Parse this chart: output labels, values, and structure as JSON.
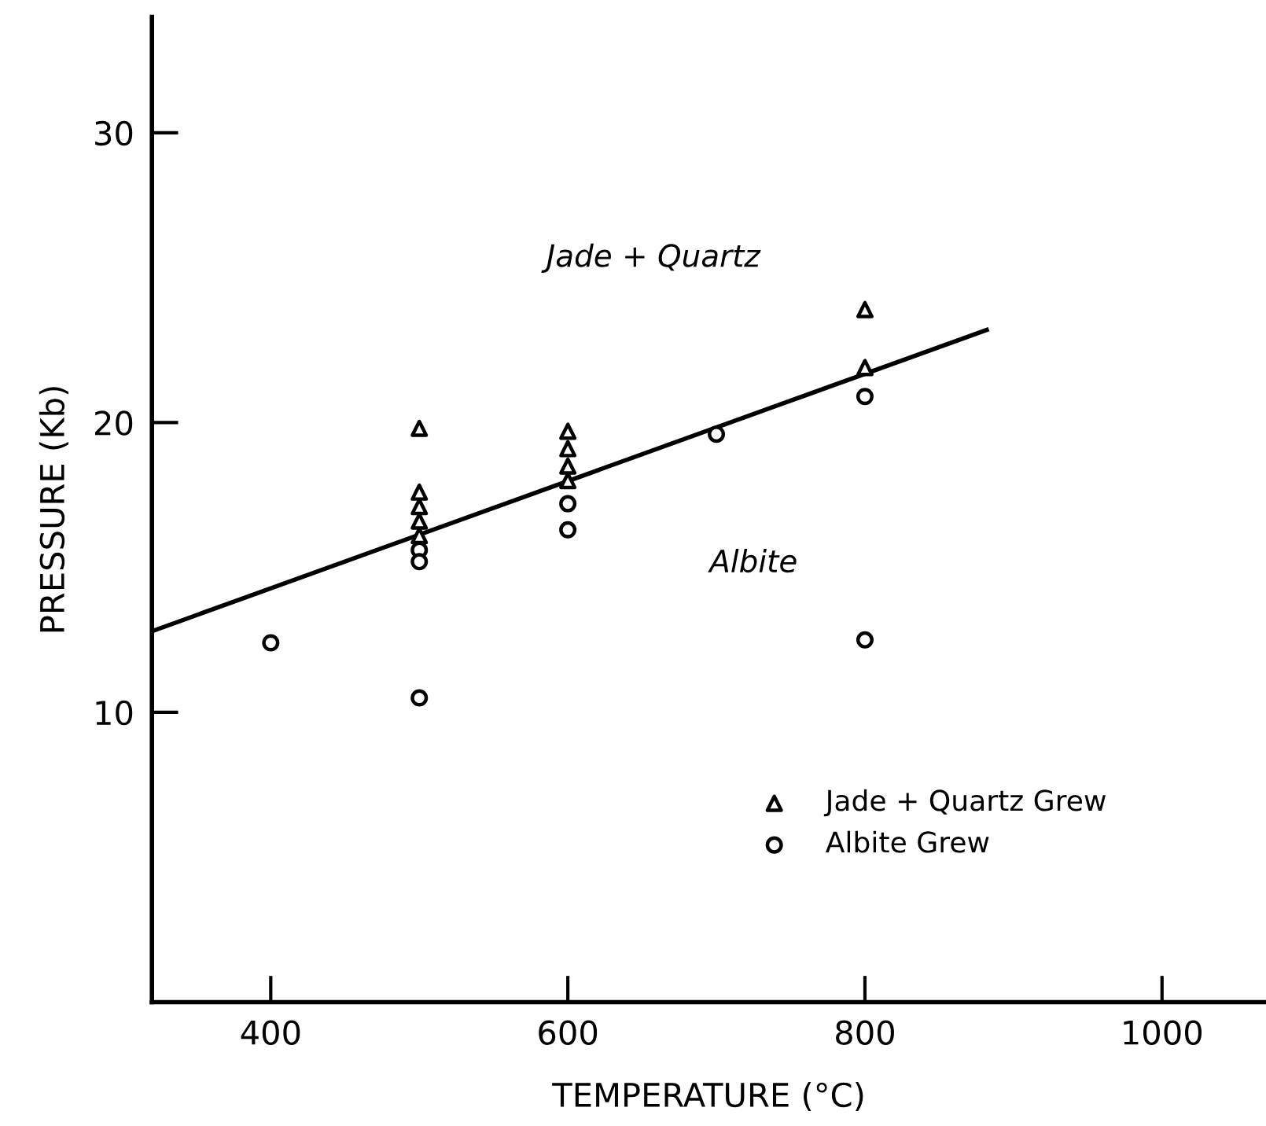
{
  "chart_data": {
    "type": "scatter",
    "xlabel": "TEMPERATURE (°C)",
    "ylabel": "PRESSURE (Kb)",
    "xlim": [
      320,
      1070
    ],
    "ylim": [
      0,
      34
    ],
    "xticks": [
      400,
      600,
      800,
      1000
    ],
    "yticks": [
      10,
      20,
      30
    ],
    "grid": false,
    "legend": "bottom right",
    "series": [
      {
        "name": "Jade + Quartz Grew",
        "color": "#000000",
        "marker": "triangle",
        "x": [
          500,
          500,
          500,
          500,
          500,
          600,
          600,
          600,
          600,
          800,
          800
        ],
        "values": [
          19.8,
          17.6,
          17.1,
          16.6,
          16.1,
          19.7,
          19.1,
          18.5,
          18.0,
          23.9,
          21.9
        ]
      },
      {
        "name": "Albite Grew",
        "color": "#000000",
        "marker": "circle",
        "x": [
          400,
          500,
          500,
          500,
          600,
          600,
          700,
          800,
          800
        ],
        "values": [
          12.4,
          15.6,
          15.2,
          10.5,
          17.2,
          16.3,
          19.6,
          20.9,
          12.5
        ]
      },
      {
        "type": "line",
        "color": "#000000",
        "marker": "none",
        "line_style": "solid",
        "x": [
          320,
          882
        ],
        "values": [
          12.8,
          23.2
        ]
      }
    ],
    "annotations": [
      "Jade + Quartz",
      "Albite"
    ]
  }
}
